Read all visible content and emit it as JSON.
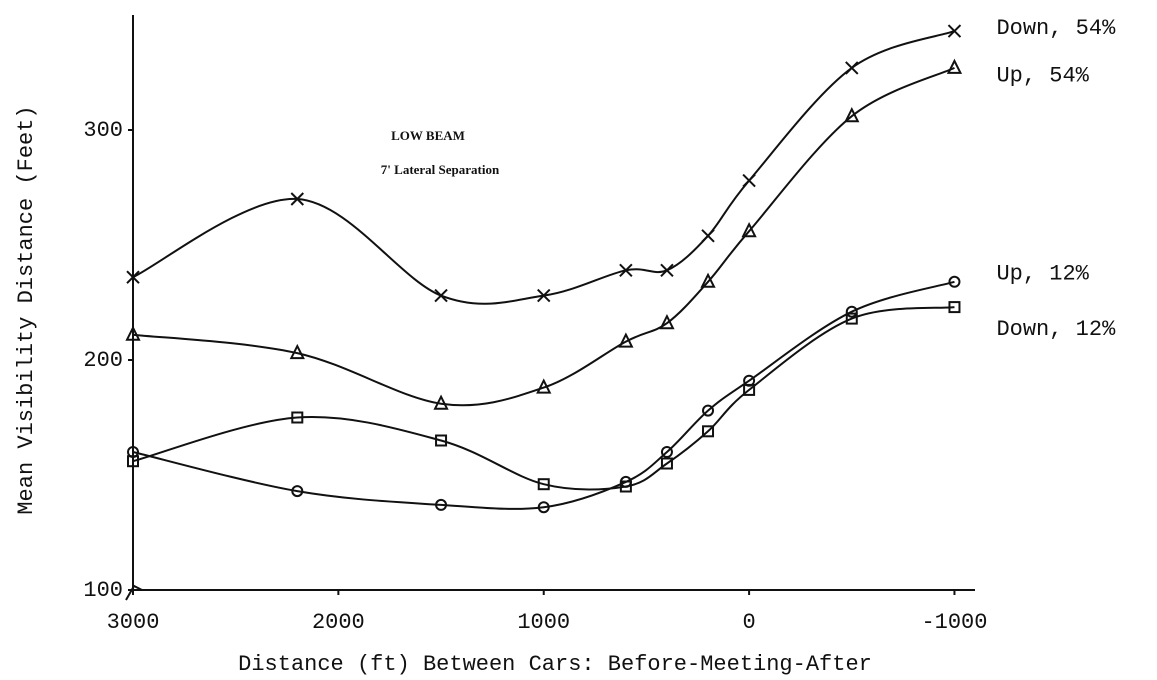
{
  "chart_data": {
    "type": "line",
    "annotations": [
      "LOW BEAM",
      "7' Lateral Separation"
    ],
    "x_label": "Distance (ft) Between Cars: Before-Meeting-After",
    "y_label": "Mean Visibility Distance (Feet)",
    "x": [
      3000,
      2200,
      1500,
      1000,
      600,
      400,
      200,
      0,
      -500,
      -1000
    ],
    "xlim": [
      3000,
      -1100
    ],
    "xticks": [
      3000,
      2000,
      1000,
      0,
      -1000
    ],
    "ylim": [
      100,
      350
    ],
    "yticks": [
      100,
      200,
      300
    ],
    "series": [
      {
        "name": "Down, 54%",
        "color": "#111111",
        "marker": "x",
        "values": [
          236,
          270,
          228,
          228,
          239,
          239,
          254,
          278,
          327,
          343
        ]
      },
      {
        "name": "Up, 54%",
        "color": "#111111",
        "marker": "triangle",
        "values": [
          211,
          203,
          181,
          188,
          208,
          216,
          234,
          256,
          306,
          327
        ]
      },
      {
        "name": "Up, 12%",
        "color": "#111111",
        "marker": "circle",
        "values": [
          160,
          143,
          137,
          136,
          147,
          160,
          178,
          191,
          221,
          234
        ]
      },
      {
        "name": "Down, 12%",
        "color": "#111111",
        "marker": "square",
        "values": [
          156,
          175,
          165,
          146,
          145,
          155,
          169,
          187,
          218,
          223
        ]
      }
    ]
  }
}
